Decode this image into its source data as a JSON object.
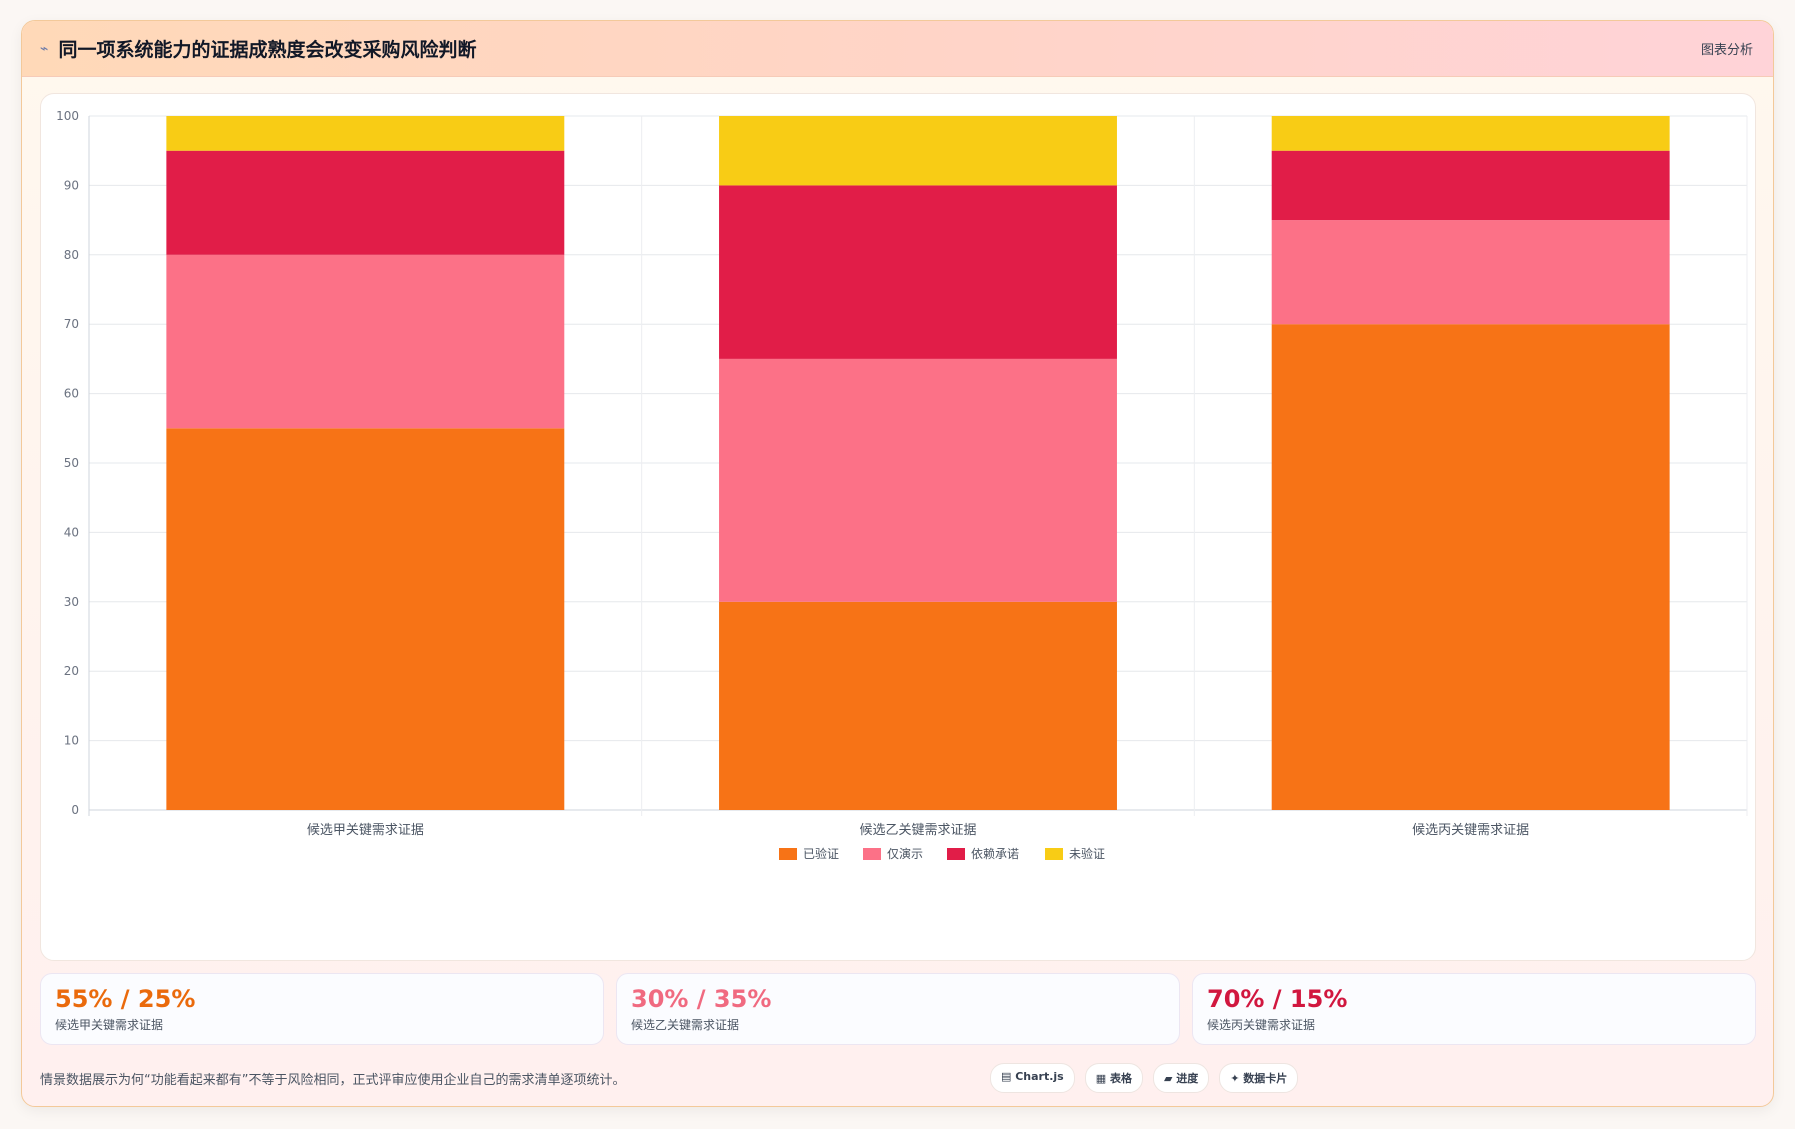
{
  "header": {
    "icon": "sparkle-icon",
    "title": "同一项系统能力的证据成熟度会改变采购风险判断",
    "action_label": "图表分析"
  },
  "chart_data": {
    "type": "bar",
    "stacked": true,
    "categories": [
      "候选甲关键需求证据",
      "候选乙关键需求证据",
      "候选丙关键需求证据"
    ],
    "series": [
      {
        "name": "已验证",
        "color": "#f77316",
        "values": [
          55,
          30,
          70
        ]
      },
      {
        "name": "仅演示",
        "color": "#fc7187",
        "values": [
          25,
          35,
          15
        ]
      },
      {
        "name": "依赖承诺",
        "color": "#e11d48",
        "values": [
          15,
          25,
          10
        ]
      },
      {
        "name": "未验证",
        "color": "#f8cc15",
        "values": [
          5,
          10,
          5
        ]
      }
    ],
    "title": "",
    "xlabel": "",
    "ylabel": "",
    "ylim": [
      0,
      100
    ],
    "yticks": [
      0,
      10,
      20,
      30,
      40,
      50,
      60,
      70,
      80,
      90,
      100
    ],
    "grid": true,
    "legend": "bottom-center"
  },
  "stats": [
    {
      "value": "55% / 25%",
      "label": "候选甲关键需求证据",
      "color": "#ea6a0c"
    },
    {
      "value": "30% / 35%",
      "label": "候选乙关键需求证据",
      "color": "#f06a80"
    },
    {
      "value": "70% / 15%",
      "label": "候选丙关键需求证据",
      "color": "#d1173f"
    }
  ],
  "footer": {
    "note": "情景数据展示为何“功能看起来都有”不等于风险相同，正式评审应使用企业自己的需求清单逐项统计。",
    "pills": [
      {
        "icon": "chart-icon",
        "label": "▤ Chart.js"
      },
      {
        "icon": "table-icon",
        "label": "▦ 表格"
      },
      {
        "icon": "progress-icon",
        "label": "▰ 进度"
      },
      {
        "icon": "card-icon",
        "label": "✦ 数据卡片"
      }
    ]
  }
}
